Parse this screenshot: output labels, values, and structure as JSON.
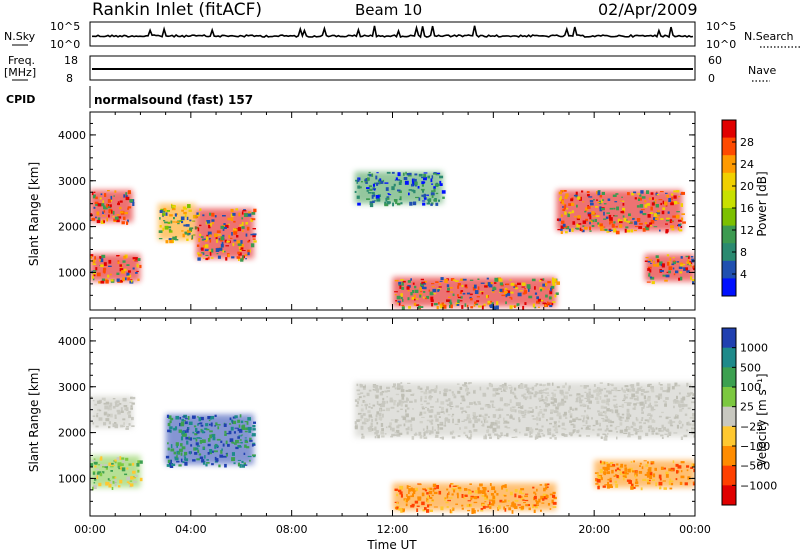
{
  "header": {
    "station": "Rankin Inlet (fitACF)",
    "beam": "Beam 10",
    "date": "02/Apr/2009"
  },
  "noise_panel": {
    "left_label": "N.Sky",
    "right_label": "N.Search",
    "left_ticks": [
      "10^5",
      "10^0"
    ],
    "right_ticks": [
      "10^5",
      "10^0"
    ]
  },
  "freq_panel": {
    "left_label_1": "Freq.",
    "left_label_2": "[MHz]",
    "right_label": "Nave",
    "left_ticks": [
      "18",
      "8"
    ],
    "right_ticks": [
      "60",
      "0"
    ]
  },
  "cpid": {
    "label": "CPID",
    "text": "normalsound (fast) 157"
  },
  "chart_data": [
    {
      "type": "heatmap",
      "name": "power",
      "ylabel": "Slant Range [km]",
      "xlabel": "",
      "ylim": [
        180,
        4500
      ],
      "yticks": [
        "1000",
        "2000",
        "3000",
        "4000"
      ],
      "colorbar": {
        "label": "Power [dB]",
        "ticks": [
          "28",
          "24",
          "20",
          "16",
          "12",
          "8",
          "4"
        ],
        "colors": [
          "#e00000",
          "#ff4a00",
          "#ff9a00",
          "#f0d000",
          "#c8e000",
          "#7cc000",
          "#3c9a50",
          "#2a8a70",
          "#2050b0",
          "#0010ff"
        ]
      },
      "echo_regions": [
        {
          "t": [
            0.0,
            2.0
          ],
          "r": [
            800,
            1400
          ],
          "level": "high"
        },
        {
          "t": [
            0.0,
            1.7
          ],
          "r": [
            2100,
            2800
          ],
          "level": "high"
        },
        {
          "t": [
            2.7,
            4.2
          ],
          "r": [
            1700,
            2500
          ],
          "level": "mid"
        },
        {
          "t": [
            4.2,
            6.5
          ],
          "r": [
            1300,
            2400
          ],
          "level": "high"
        },
        {
          "t": [
            12.0,
            18.5
          ],
          "r": [
            250,
            900
          ],
          "level": "high"
        },
        {
          "t": [
            18.5,
            23.5
          ],
          "r": [
            1900,
            2800
          ],
          "level": "high"
        },
        {
          "t": [
            22.0,
            24.0
          ],
          "r": [
            800,
            1400
          ],
          "level": "high"
        },
        {
          "t": [
            10.5,
            14.0
          ],
          "r": [
            2500,
            3200
          ],
          "level": "low"
        }
      ]
    },
    {
      "type": "heatmap",
      "name": "velocity",
      "ylabel": "Slant Range [km]",
      "xlabel": "Time UT",
      "ylim": [
        180,
        4500
      ],
      "yticks": [
        "1000",
        "2000",
        "3000",
        "4000"
      ],
      "xticks": [
        "00:00",
        "04:00",
        "08:00",
        "12:00",
        "16:00",
        "20:00",
        "00:00"
      ],
      "colorbar": {
        "label": "Velocity [m s⁻¹]",
        "ticks": [
          "1000",
          "500",
          "100",
          "25",
          "−25",
          "−100",
          "−500",
          "−1000"
        ],
        "colors": [
          "#2040b0",
          "#1e8a8a",
          "#3ca050",
          "#7cc840",
          "#c8c8c0",
          "#ffc830",
          "#ff8c00",
          "#ff4000",
          "#e00000"
        ]
      },
      "echo_regions": [
        {
          "t": [
            0.0,
            2.0
          ],
          "r": [
            800,
            1500
          ],
          "level": "low-positive"
        },
        {
          "t": [
            0.0,
            1.7
          ],
          "r": [
            2100,
            2800
          ],
          "level": "ground-scatter"
        },
        {
          "t": [
            3.0,
            6.5
          ],
          "r": [
            1300,
            2400
          ],
          "level": "positive"
        },
        {
          "t": [
            12.0,
            18.5
          ],
          "r": [
            300,
            900
          ],
          "level": "negative"
        },
        {
          "t": [
            10.5,
            24.0
          ],
          "r": [
            1900,
            3100
          ],
          "level": "ground-scatter"
        },
        {
          "t": [
            20.0,
            24.0
          ],
          "r": [
            800,
            1400
          ],
          "level": "negative"
        }
      ]
    }
  ]
}
